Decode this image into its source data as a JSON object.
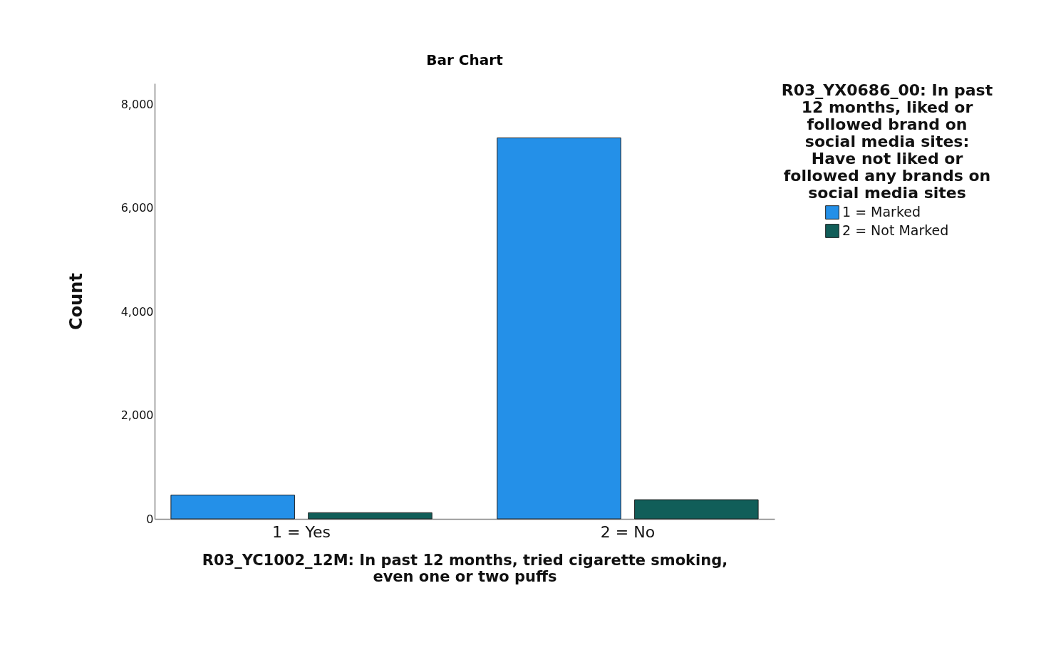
{
  "chart_data": {
    "type": "bar",
    "title": "Bar Chart",
    "xlabel": "R03_YC1002_12M: In past 12 months, tried cigarette smoking, even one or two puffs",
    "ylabel": "Count",
    "legend_title": "R03_YX0686_00: In past 12 months, liked or followed brand on social media sites: Have not liked or followed any brands on social media sites",
    "categories": [
      "1 = Yes",
      "2 = No"
    ],
    "series": [
      {
        "name": "1 = Marked",
        "color": "#2490e8",
        "values": [
          460,
          7350
        ]
      },
      {
        "name": "2 = Not Marked",
        "color": "#115e59",
        "values": [
          120,
          370
        ]
      }
    ],
    "ylim": [
      0,
      8400
    ],
    "yticks": [
      {
        "value": 0,
        "label": "0"
      },
      {
        "value": 2000,
        "label": "2,000"
      },
      {
        "value": 4000,
        "label": "4,000"
      },
      {
        "value": 6000,
        "label": "6,000"
      },
      {
        "value": 8000,
        "label": "8,000"
      }
    ],
    "grid": false,
    "legend": "top right"
  }
}
